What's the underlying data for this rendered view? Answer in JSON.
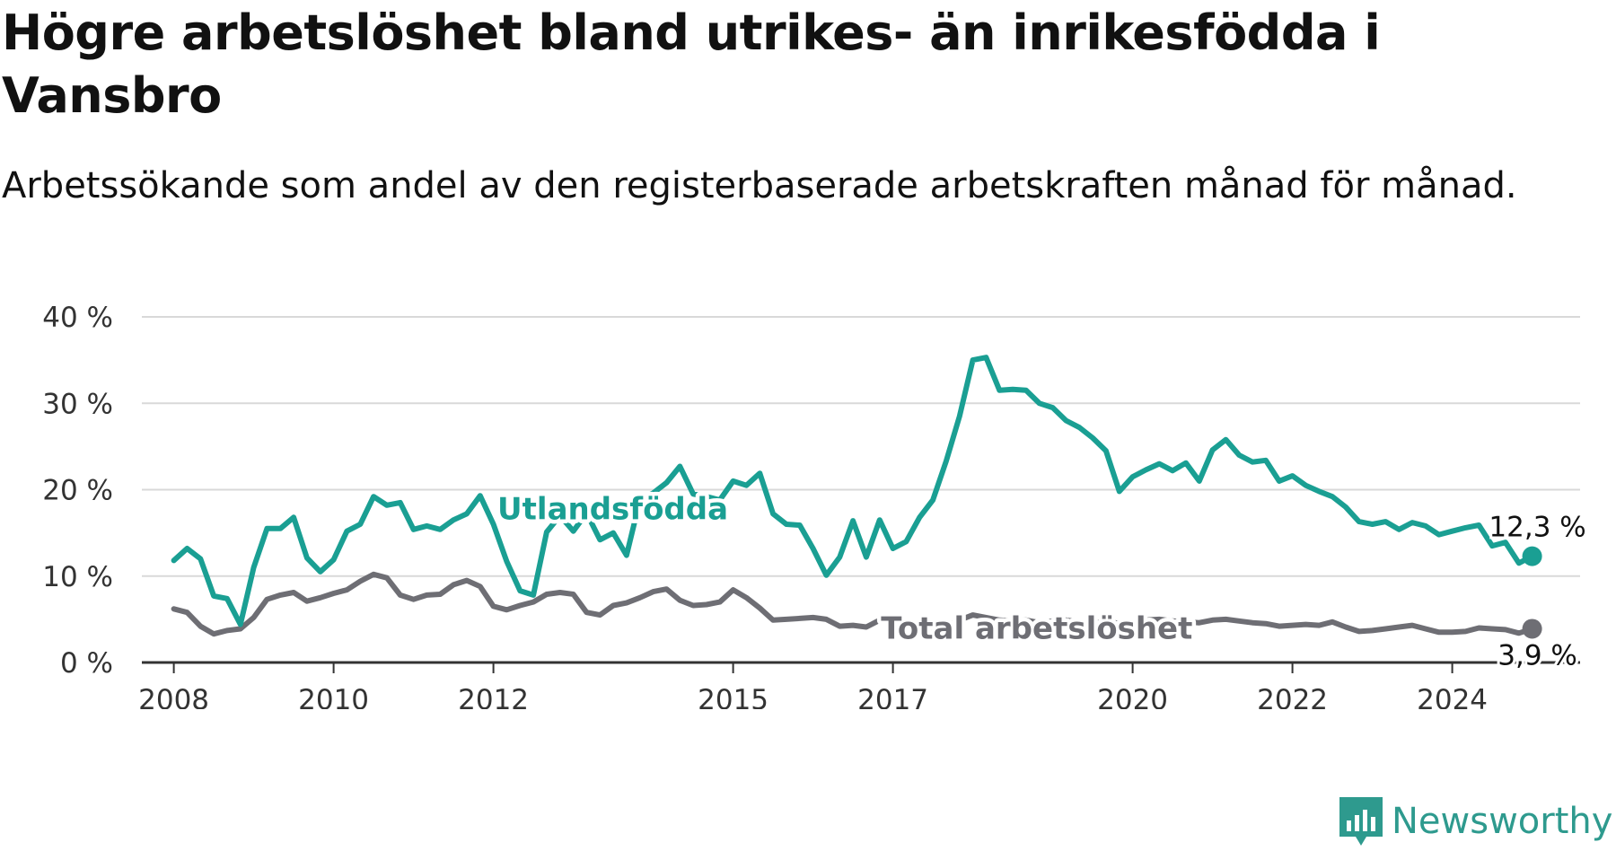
{
  "title": "Högre arbetslöshet bland utrikes- än inrikesfödda i Vansbro",
  "subtitle": "Arbetssökande som andel av den registerbaserade arbetskraften månad för månad.",
  "logo": {
    "text": "Newsworthy",
    "icon": "newsworthy-logo-icon"
  },
  "colors": {
    "foreign": "#1a9f93",
    "total": "#6e6e74",
    "grid": "#d9d9d9",
    "axis": "#333333",
    "text": "#111111"
  },
  "chart_data": {
    "type": "line",
    "xlabel": "",
    "ylabel": "",
    "ylim": [
      0,
      40
    ],
    "yticks": [
      0,
      10,
      20,
      30,
      40
    ],
    "ytick_labels": [
      "0 %",
      "10 %",
      "20 %",
      "30 %",
      "40 %"
    ],
    "xticks": [
      2008,
      2010,
      2012,
      2015,
      2017,
      2020,
      2022,
      2024
    ],
    "xtick_labels": [
      "2008",
      "2010",
      "2012",
      "2015",
      "2017",
      "2020",
      "2022",
      "2024"
    ],
    "grid": true,
    "legend": "inline labels",
    "series": [
      {
        "name": "Utlandsfödda",
        "key": "foreign",
        "end_label": "12,3 %",
        "points": [
          [
            "2008-01",
            11.8
          ],
          [
            "2008-03",
            13.2
          ],
          [
            "2008-05",
            12.0
          ],
          [
            "2008-07",
            7.7
          ],
          [
            "2008-09",
            7.4
          ],
          [
            "2008-11",
            4.4
          ],
          [
            "2009-01",
            11.0
          ],
          [
            "2009-03",
            15.5
          ],
          [
            "2009-05",
            15.5
          ],
          [
            "2009-07",
            16.8
          ],
          [
            "2009-09",
            12.1
          ],
          [
            "2009-11",
            10.5
          ],
          [
            "2010-01",
            11.9
          ],
          [
            "2010-03",
            15.2
          ],
          [
            "2010-05",
            16.0
          ],
          [
            "2010-07",
            19.2
          ],
          [
            "2010-09",
            18.2
          ],
          [
            "2010-11",
            18.5
          ],
          [
            "2011-01",
            15.4
          ],
          [
            "2011-03",
            15.8
          ],
          [
            "2011-05",
            15.4
          ],
          [
            "2011-07",
            16.5
          ],
          [
            "2011-09",
            17.2
          ],
          [
            "2011-11",
            19.3
          ],
          [
            "2012-01",
            16.0
          ],
          [
            "2012-03",
            11.7
          ],
          [
            "2012-05",
            8.3
          ],
          [
            "2012-07",
            7.8
          ],
          [
            "2012-09",
            15.1
          ],
          [
            "2012-11",
            17.0
          ],
          [
            "2013-01",
            15.2
          ],
          [
            "2013-03",
            17.3
          ],
          [
            "2013-05",
            14.2
          ],
          [
            "2013-07",
            15.0
          ],
          [
            "2013-09",
            12.4
          ],
          [
            "2013-11",
            18.8
          ],
          [
            "2014-01",
            19.6
          ],
          [
            "2014-03",
            20.8
          ],
          [
            "2014-05",
            22.7
          ],
          [
            "2014-07",
            19.5
          ],
          [
            "2014-09",
            19.2
          ],
          [
            "2014-11",
            18.8
          ],
          [
            "2015-01",
            21.0
          ],
          [
            "2015-03",
            20.5
          ],
          [
            "2015-05",
            21.9
          ],
          [
            "2015-07",
            17.2
          ],
          [
            "2015-09",
            16.0
          ],
          [
            "2015-11",
            15.9
          ],
          [
            "2016-01",
            13.2
          ],
          [
            "2016-03",
            10.1
          ],
          [
            "2016-05",
            12.2
          ],
          [
            "2016-07",
            16.4
          ],
          [
            "2016-09",
            12.2
          ],
          [
            "2016-11",
            16.5
          ],
          [
            "2017-01",
            13.2
          ],
          [
            "2017-03",
            14.0
          ],
          [
            "2017-05",
            16.8
          ],
          [
            "2017-07",
            18.8
          ],
          [
            "2017-09",
            23.3
          ],
          [
            "2017-11",
            28.5
          ],
          [
            "2018-01",
            35.0
          ],
          [
            "2018-03",
            35.3
          ],
          [
            "2018-05",
            31.5
          ],
          [
            "2018-07",
            31.6
          ],
          [
            "2018-09",
            31.5
          ],
          [
            "2018-11",
            30.0
          ],
          [
            "2019-01",
            29.5
          ],
          [
            "2019-03",
            28.0
          ],
          [
            "2019-05",
            27.2
          ],
          [
            "2019-07",
            26.0
          ],
          [
            "2019-09",
            24.5
          ],
          [
            "2019-11",
            19.8
          ],
          [
            "2020-01",
            21.5
          ],
          [
            "2020-03",
            22.3
          ],
          [
            "2020-05",
            23.0
          ],
          [
            "2020-07",
            22.2
          ],
          [
            "2020-09",
            23.1
          ],
          [
            "2020-11",
            21.0
          ],
          [
            "2021-01",
            24.6
          ],
          [
            "2021-03",
            25.8
          ],
          [
            "2021-05",
            24.0
          ],
          [
            "2021-07",
            23.2
          ],
          [
            "2021-09",
            23.4
          ],
          [
            "2021-11",
            21.0
          ],
          [
            "2022-01",
            21.6
          ],
          [
            "2022-03",
            20.5
          ],
          [
            "2022-05",
            19.8
          ],
          [
            "2022-07",
            19.2
          ],
          [
            "2022-09",
            18.0
          ],
          [
            "2022-11",
            16.3
          ],
          [
            "2023-01",
            16.0
          ],
          [
            "2023-03",
            16.3
          ],
          [
            "2023-05",
            15.4
          ],
          [
            "2023-07",
            16.2
          ],
          [
            "2023-09",
            15.8
          ],
          [
            "2023-11",
            14.8
          ],
          [
            "2024-01",
            15.2
          ],
          [
            "2024-03",
            15.6
          ],
          [
            "2024-05",
            15.9
          ],
          [
            "2024-07",
            13.5
          ],
          [
            "2024-09",
            13.9
          ],
          [
            "2024-11",
            11.5
          ],
          [
            "2025-01",
            12.3
          ]
        ]
      },
      {
        "name": "Total arbetslöshet",
        "key": "total",
        "end_label": "3,9 %",
        "points": [
          [
            "2008-01",
            6.2
          ],
          [
            "2008-03",
            5.8
          ],
          [
            "2008-05",
            4.2
          ],
          [
            "2008-07",
            3.3
          ],
          [
            "2008-09",
            3.7
          ],
          [
            "2008-11",
            3.9
          ],
          [
            "2009-01",
            5.2
          ],
          [
            "2009-03",
            7.3
          ],
          [
            "2009-05",
            7.8
          ],
          [
            "2009-07",
            8.1
          ],
          [
            "2009-09",
            7.1
          ],
          [
            "2009-11",
            7.5
          ],
          [
            "2010-01",
            8.0
          ],
          [
            "2010-03",
            8.4
          ],
          [
            "2010-05",
            9.4
          ],
          [
            "2010-07",
            10.2
          ],
          [
            "2010-09",
            9.8
          ],
          [
            "2010-11",
            7.8
          ],
          [
            "2011-01",
            7.3
          ],
          [
            "2011-03",
            7.8
          ],
          [
            "2011-05",
            7.9
          ],
          [
            "2011-07",
            9.0
          ],
          [
            "2011-09",
            9.5
          ],
          [
            "2011-11",
            8.8
          ],
          [
            "2012-01",
            6.5
          ],
          [
            "2012-03",
            6.1
          ],
          [
            "2012-05",
            6.6
          ],
          [
            "2012-07",
            7.0
          ],
          [
            "2012-09",
            7.9
          ],
          [
            "2012-11",
            8.1
          ],
          [
            "2013-01",
            7.9
          ],
          [
            "2013-03",
            5.8
          ],
          [
            "2013-05",
            5.5
          ],
          [
            "2013-07",
            6.6
          ],
          [
            "2013-09",
            6.9
          ],
          [
            "2013-11",
            7.5
          ],
          [
            "2014-01",
            8.2
          ],
          [
            "2014-03",
            8.5
          ],
          [
            "2014-05",
            7.2
          ],
          [
            "2014-07",
            6.6
          ],
          [
            "2014-09",
            6.7
          ],
          [
            "2014-11",
            7.0
          ],
          [
            "2015-01",
            8.4
          ],
          [
            "2015-03",
            7.5
          ],
          [
            "2015-05",
            6.3
          ],
          [
            "2015-07",
            4.9
          ],
          [
            "2015-09",
            5.0
          ],
          [
            "2015-11",
            5.1
          ],
          [
            "2016-01",
            5.2
          ],
          [
            "2016-03",
            5.0
          ],
          [
            "2016-05",
            4.2
          ],
          [
            "2016-07",
            4.3
          ],
          [
            "2016-09",
            4.1
          ],
          [
            "2016-11",
            4.9
          ],
          [
            "2017-01",
            4.8
          ],
          [
            "2017-03",
            4.2
          ],
          [
            "2017-05",
            3.3
          ],
          [
            "2017-07",
            3.7
          ],
          [
            "2017-09",
            4.2
          ],
          [
            "2017-11",
            4.9
          ],
          [
            "2018-01",
            5.5
          ],
          [
            "2018-03",
            5.2
          ],
          [
            "2018-05",
            4.9
          ],
          [
            "2018-07",
            4.8
          ],
          [
            "2018-09",
            4.9
          ],
          [
            "2018-11",
            4.6
          ],
          [
            "2019-01",
            4.8
          ],
          [
            "2019-03",
            4.9
          ],
          [
            "2019-05",
            4.7
          ],
          [
            "2019-07",
            4.6
          ],
          [
            "2019-09",
            4.8
          ],
          [
            "2019-11",
            4.5
          ],
          [
            "2020-01",
            4.7
          ],
          [
            "2020-03",
            4.9
          ],
          [
            "2020-05",
            5.0
          ],
          [
            "2020-07",
            4.8
          ],
          [
            "2020-09",
            4.7
          ],
          [
            "2020-11",
            4.6
          ],
          [
            "2021-01",
            4.9
          ],
          [
            "2021-03",
            5.0
          ],
          [
            "2021-05",
            4.8
          ],
          [
            "2021-07",
            4.6
          ],
          [
            "2021-09",
            4.5
          ],
          [
            "2021-11",
            4.2
          ],
          [
            "2022-01",
            4.3
          ],
          [
            "2022-03",
            4.4
          ],
          [
            "2022-05",
            4.3
          ],
          [
            "2022-07",
            4.7
          ],
          [
            "2022-09",
            4.1
          ],
          [
            "2022-11",
            3.6
          ],
          [
            "2023-01",
            3.7
          ],
          [
            "2023-03",
            3.9
          ],
          [
            "2023-05",
            4.1
          ],
          [
            "2023-07",
            4.3
          ],
          [
            "2023-09",
            3.9
          ],
          [
            "2023-11",
            3.5
          ],
          [
            "2024-01",
            3.5
          ],
          [
            "2024-03",
            3.6
          ],
          [
            "2024-05",
            4.0
          ],
          [
            "2024-07",
            3.9
          ],
          [
            "2024-09",
            3.8
          ],
          [
            "2024-11",
            3.4
          ],
          [
            "2025-01",
            3.9
          ]
        ]
      }
    ]
  }
}
